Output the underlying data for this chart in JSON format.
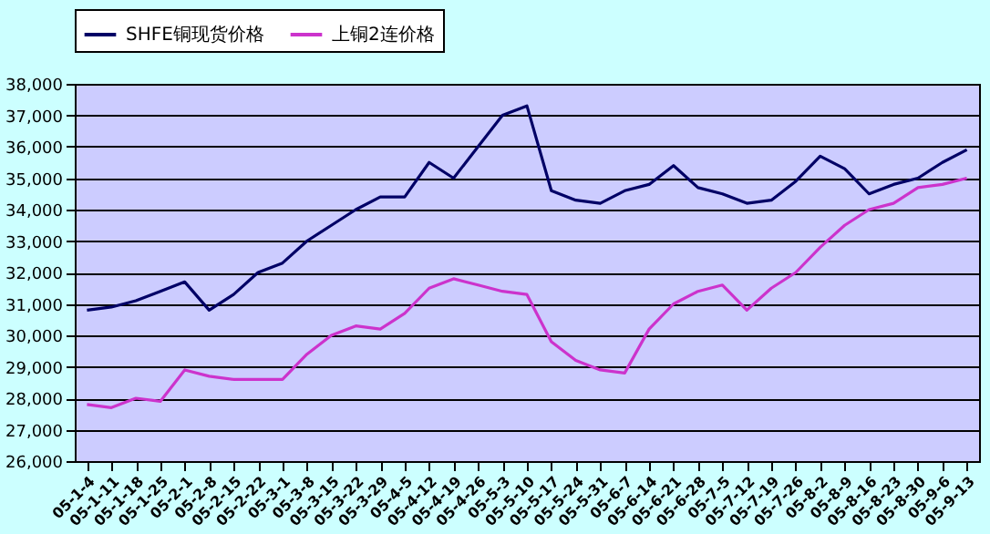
{
  "chart_data": {
    "type": "line",
    "categories": [
      "05-1-4",
      "05-1-11",
      "05-1-18",
      "05-1-25",
      "05-2-1",
      "05-2-8",
      "05-2-15",
      "05-2-22",
      "05-3-1",
      "05-3-8",
      "05-3-15",
      "05-3-22",
      "05-3-29",
      "05-4-5",
      "05-4-12",
      "05-4-19",
      "05-4-26",
      "05-5-3",
      "05-5-10",
      "05-5-17",
      "05-5-24",
      "05-5-31",
      "05-6-7",
      "05-6-14",
      "05-6-21",
      "05-6-28",
      "05-7-5",
      "05-7-12",
      "05-7-19",
      "05-7-26",
      "05-8-2",
      "05-8-9",
      "05-8-16",
      "05-8-23",
      "05-8-30",
      "05-9-6",
      "05-9-13"
    ],
    "series": [
      {
        "name": "SHFE铜现货价格",
        "color": "#000066",
        "values": [
          30800,
          30900,
          31100,
          31400,
          31700,
          30800,
          31300,
          32000,
          32300,
          33000,
          33500,
          34000,
          34400,
          34400,
          35500,
          35000,
          36000,
          37000,
          37300,
          34600,
          34300,
          34200,
          34600,
          34800,
          35400,
          34700,
          34500,
          34200,
          34300,
          34900,
          35700,
          35300,
          34500,
          34800,
          35000,
          35500,
          35900
        ]
      },
      {
        "name": "上铜2连价格",
        "color": "#cc33cc",
        "values": [
          27800,
          27700,
          28000,
          27900,
          28900,
          28700,
          28600,
          28600,
          28600,
          29400,
          30000,
          30300,
          30200,
          30700,
          31500,
          31800,
          31600,
          31400,
          31300,
          29800,
          29200,
          28900,
          28800,
          30200,
          31000,
          31400,
          31600,
          30800,
          31500,
          32000,
          32800,
          33500,
          34000,
          34200,
          34700,
          34800,
          35000
        ]
      }
    ],
    "ylim": [
      26000,
      38000
    ],
    "yticks": [
      {
        "value": 26000,
        "label": "26,000"
      },
      {
        "value": 27000,
        "label": "27,000"
      },
      {
        "value": 28000,
        "label": "28,000"
      },
      {
        "value": 29000,
        "label": "29,000"
      },
      {
        "value": 30000,
        "label": "30,000"
      },
      {
        "value": 31000,
        "label": "31,000"
      },
      {
        "value": 32000,
        "label": "32,000"
      },
      {
        "value": 33000,
        "label": "33,000"
      },
      {
        "value": 34000,
        "label": "34,000"
      },
      {
        "value": 35000,
        "label": "35,000"
      },
      {
        "value": 36000,
        "label": "36,000"
      },
      {
        "value": 37000,
        "label": "37,000"
      },
      {
        "value": 38000,
        "label": "38,000"
      }
    ],
    "grid": "y",
    "legend": "top",
    "marker": "none",
    "line_style": "solid"
  }
}
